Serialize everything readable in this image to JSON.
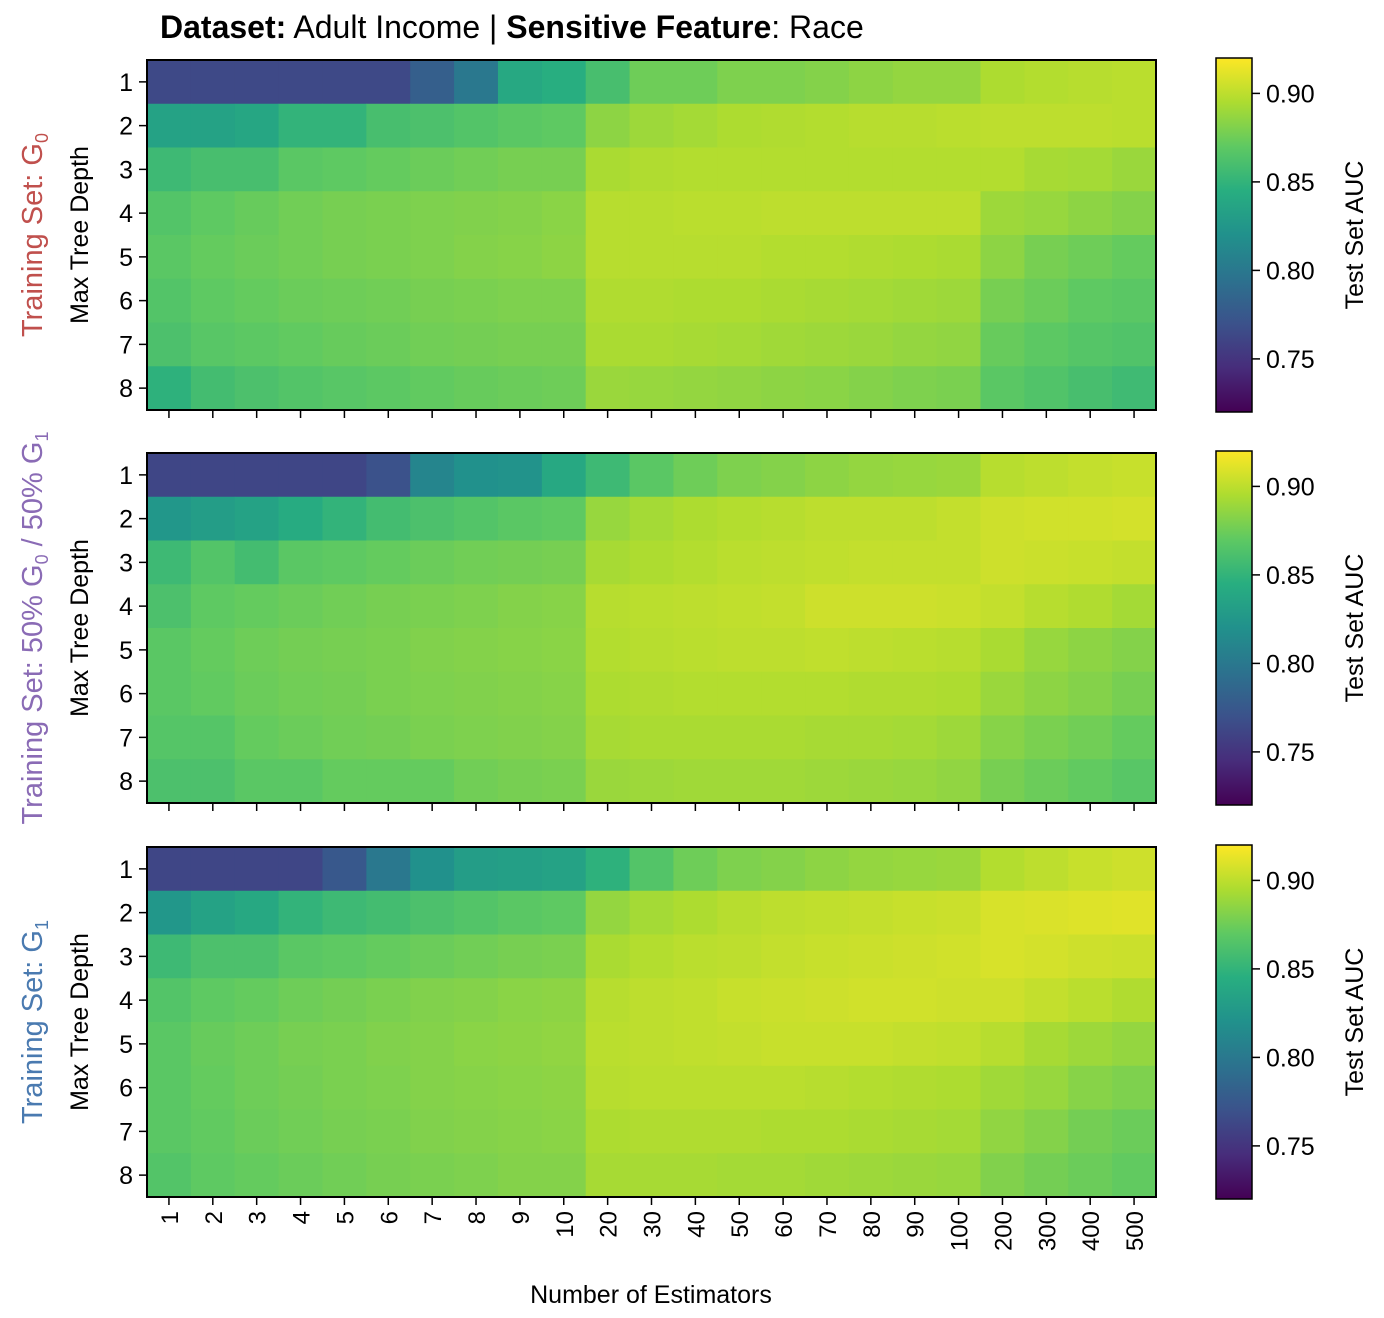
{
  "title": {
    "bold1": "Dataset:",
    "text1": " Adult Income | ",
    "bold2": "Sensitive Feature",
    "text2": ": Race"
  },
  "xlabel": "Number of Estimators",
  "ylabel": "Max Tree Depth",
  "colorbar_label": "Test Set AUC",
  "colorbar_ticks": [
    "0.75",
    "0.80",
    "0.85",
    "0.90"
  ],
  "panel_labels": [
    {
      "prefix": "Training Set: ",
      "parts": [
        [
          "G",
          "0",
          ""
        ]
      ],
      "color": "#c0504d"
    },
    {
      "prefix": "Training Set: ",
      "parts": [
        [
          "50% G",
          "0",
          " / "
        ],
        [
          "50% G",
          "1",
          ""
        ]
      ],
      "color": "#8a6bb5"
    },
    {
      "prefix": "Training Set: ",
      "parts": [
        [
          "G",
          "1",
          ""
        ]
      ],
      "color": "#4a7ab0"
    }
  ],
  "chart_data": {
    "type": "heatmap",
    "colormap": "viridis",
    "vmin": 0.72,
    "vmax": 0.92,
    "x": [
      "1",
      "2",
      "3",
      "4",
      "5",
      "6",
      "7",
      "8",
      "9",
      "10",
      "20",
      "30",
      "40",
      "50",
      "60",
      "70",
      "80",
      "90",
      "100",
      "200",
      "300",
      "400",
      "500"
    ],
    "y": [
      "1",
      "2",
      "3",
      "4",
      "5",
      "6",
      "7",
      "8"
    ],
    "panels": [
      {
        "values": [
          [
            0.764,
            0.764,
            0.764,
            0.764,
            0.764,
            0.764,
            0.78,
            0.8,
            0.84,
            0.845,
            0.86,
            0.875,
            0.875,
            0.88,
            0.88,
            0.882,
            0.885,
            0.887,
            0.887,
            0.895,
            0.897,
            0.898,
            0.899
          ],
          [
            0.835,
            0.835,
            0.838,
            0.85,
            0.85,
            0.86,
            0.862,
            0.865,
            0.868,
            0.87,
            0.885,
            0.89,
            0.892,
            0.895,
            0.896,
            0.897,
            0.898,
            0.898,
            0.899,
            0.9,
            0.9,
            0.9,
            0.899
          ],
          [
            0.855,
            0.86,
            0.86,
            0.868,
            0.87,
            0.872,
            0.874,
            0.876,
            0.878,
            0.878,
            0.894,
            0.896,
            0.897,
            0.897,
            0.897,
            0.897,
            0.897,
            0.897,
            0.897,
            0.897,
            0.893,
            0.892,
            0.889
          ],
          [
            0.865,
            0.87,
            0.873,
            0.876,
            0.878,
            0.879,
            0.88,
            0.881,
            0.882,
            0.884,
            0.898,
            0.898,
            0.899,
            0.899,
            0.9,
            0.9,
            0.9,
            0.9,
            0.9,
            0.89,
            0.888,
            0.885,
            0.882
          ],
          [
            0.868,
            0.872,
            0.874,
            0.876,
            0.878,
            0.879,
            0.88,
            0.882,
            0.883,
            0.885,
            0.898,
            0.898,
            0.898,
            0.898,
            0.897,
            0.897,
            0.896,
            0.895,
            0.894,
            0.885,
            0.878,
            0.875,
            0.872
          ],
          [
            0.865,
            0.87,
            0.872,
            0.874,
            0.875,
            0.876,
            0.878,
            0.879,
            0.88,
            0.88,
            0.896,
            0.896,
            0.895,
            0.895,
            0.894,
            0.893,
            0.892,
            0.891,
            0.89,
            0.878,
            0.874,
            0.87,
            0.868
          ],
          [
            0.862,
            0.867,
            0.869,
            0.871,
            0.873,
            0.874,
            0.876,
            0.877,
            0.878,
            0.878,
            0.894,
            0.894,
            0.893,
            0.892,
            0.891,
            0.89,
            0.889,
            0.887,
            0.886,
            0.873,
            0.869,
            0.866,
            0.864
          ],
          [
            0.848,
            0.858,
            0.862,
            0.865,
            0.867,
            0.869,
            0.871,
            0.873,
            0.874,
            0.875,
            0.889,
            0.888,
            0.887,
            0.886,
            0.885,
            0.884,
            0.882,
            0.88,
            0.879,
            0.868,
            0.864,
            0.86,
            0.856
          ]
        ]
      },
      {
        "values": [
          [
            0.762,
            0.762,
            0.762,
            0.762,
            0.762,
            0.77,
            0.81,
            0.82,
            0.822,
            0.84,
            0.855,
            0.868,
            0.875,
            0.88,
            0.882,
            0.885,
            0.887,
            0.888,
            0.889,
            0.898,
            0.9,
            0.902,
            0.903
          ],
          [
            0.825,
            0.83,
            0.835,
            0.842,
            0.85,
            0.858,
            0.862,
            0.865,
            0.868,
            0.87,
            0.888,
            0.892,
            0.895,
            0.897,
            0.898,
            0.9,
            0.9,
            0.9,
            0.902,
            0.905,
            0.906,
            0.906,
            0.907
          ],
          [
            0.855,
            0.865,
            0.858,
            0.868,
            0.87,
            0.872,
            0.874,
            0.876,
            0.877,
            0.878,
            0.893,
            0.895,
            0.897,
            0.899,
            0.9,
            0.901,
            0.902,
            0.902,
            0.902,
            0.905,
            0.904,
            0.903,
            0.902
          ],
          [
            0.862,
            0.87,
            0.872,
            0.874,
            0.876,
            0.878,
            0.879,
            0.88,
            0.882,
            0.883,
            0.898,
            0.899,
            0.9,
            0.901,
            0.902,
            0.905,
            0.905,
            0.905,
            0.904,
            0.902,
            0.898,
            0.896,
            0.892
          ],
          [
            0.868,
            0.872,
            0.875,
            0.877,
            0.878,
            0.879,
            0.881,
            0.882,
            0.883,
            0.884,
            0.897,
            0.898,
            0.899,
            0.9,
            0.9,
            0.901,
            0.9,
            0.899,
            0.898,
            0.894,
            0.888,
            0.885,
            0.882
          ],
          [
            0.868,
            0.871,
            0.874,
            0.876,
            0.877,
            0.879,
            0.88,
            0.881,
            0.882,
            0.883,
            0.895,
            0.896,
            0.897,
            0.897,
            0.897,
            0.897,
            0.896,
            0.896,
            0.895,
            0.889,
            0.885,
            0.882,
            0.878
          ],
          [
            0.866,
            0.866,
            0.872,
            0.874,
            0.876,
            0.877,
            0.879,
            0.88,
            0.881,
            0.882,
            0.893,
            0.894,
            0.894,
            0.894,
            0.894,
            0.893,
            0.893,
            0.892,
            0.89,
            0.883,
            0.879,
            0.876,
            0.872
          ],
          [
            0.862,
            0.862,
            0.868,
            0.868,
            0.872,
            0.872,
            0.872,
            0.876,
            0.878,
            0.879,
            0.889,
            0.89,
            0.891,
            0.891,
            0.891,
            0.89,
            0.889,
            0.888,
            0.886,
            0.878,
            0.874,
            0.871,
            0.867
          ]
        ]
      },
      {
        "values": [
          [
            0.762,
            0.762,
            0.762,
            0.762,
            0.775,
            0.8,
            0.82,
            0.83,
            0.832,
            0.835,
            0.848,
            0.865,
            0.875,
            0.88,
            0.882,
            0.885,
            0.887,
            0.888,
            0.889,
            0.897,
            0.9,
            0.903,
            0.905
          ],
          [
            0.825,
            0.835,
            0.84,
            0.85,
            0.855,
            0.858,
            0.862,
            0.865,
            0.868,
            0.87,
            0.887,
            0.892,
            0.895,
            0.898,
            0.9,
            0.901,
            0.902,
            0.903,
            0.904,
            0.908,
            0.909,
            0.91,
            0.911
          ],
          [
            0.855,
            0.862,
            0.862,
            0.868,
            0.87,
            0.872,
            0.874,
            0.876,
            0.878,
            0.879,
            0.894,
            0.897,
            0.899,
            0.9,
            0.902,
            0.903,
            0.904,
            0.905,
            0.906,
            0.908,
            0.907,
            0.905,
            0.904
          ],
          [
            0.865,
            0.87,
            0.872,
            0.875,
            0.877,
            0.879,
            0.881,
            0.882,
            0.884,
            0.885,
            0.898,
            0.9,
            0.901,
            0.903,
            0.904,
            0.905,
            0.906,
            0.906,
            0.905,
            0.905,
            0.902,
            0.899,
            0.896
          ],
          [
            0.868,
            0.873,
            0.875,
            0.878,
            0.879,
            0.881,
            0.882,
            0.884,
            0.885,
            0.886,
            0.899,
            0.9,
            0.901,
            0.902,
            0.903,
            0.903,
            0.903,
            0.902,
            0.901,
            0.898,
            0.893,
            0.89,
            0.887
          ],
          [
            0.868,
            0.872,
            0.875,
            0.877,
            0.879,
            0.88,
            0.882,
            0.883,
            0.884,
            0.885,
            0.898,
            0.899,
            0.899,
            0.899,
            0.899,
            0.898,
            0.897,
            0.896,
            0.895,
            0.891,
            0.888,
            0.883,
            0.88
          ],
          [
            0.868,
            0.871,
            0.874,
            0.876,
            0.878,
            0.879,
            0.881,
            0.882,
            0.883,
            0.884,
            0.895,
            0.896,
            0.896,
            0.896,
            0.895,
            0.895,
            0.894,
            0.893,
            0.892,
            0.886,
            0.882,
            0.877,
            0.874
          ],
          [
            0.865,
            0.87,
            0.872,
            0.874,
            0.876,
            0.878,
            0.879,
            0.88,
            0.882,
            0.882,
            0.893,
            0.893,
            0.893,
            0.892,
            0.892,
            0.891,
            0.89,
            0.889,
            0.888,
            0.881,
            0.877,
            0.874,
            0.871
          ]
        ]
      }
    ]
  }
}
